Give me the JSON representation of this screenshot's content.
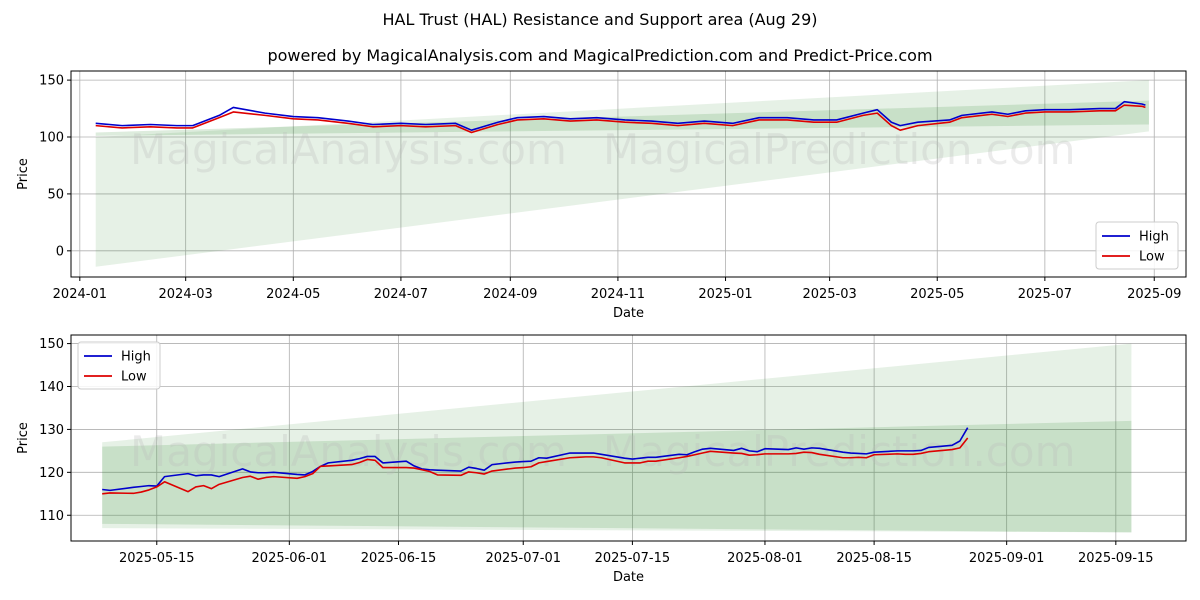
{
  "title": "HAL Trust (HAL) Resistance and Support area (Aug 29)",
  "subtitle": "powered by MagicalAnalysis.com and MagicalPrediction.com and Predict-Price.com",
  "watermarks": [
    "MagicalAnalysis.com",
    "MagicalPrediction.com"
  ],
  "colors": {
    "high": "#0000cc",
    "low": "#dd0000",
    "band": "#2e8b2e"
  },
  "chart_data": [
    {
      "type": "line",
      "xlabel": "Date",
      "ylabel": "Price",
      "ylim": [
        -23,
        158
      ],
      "xlim": [
        "2023-12-27",
        "2025-09-19"
      ],
      "grid": true,
      "legend_position": "bottom-right",
      "x_ticks": [
        "2024-01",
        "2024-03",
        "2024-05",
        "2024-07",
        "2024-09",
        "2024-11",
        "2025-01",
        "2025-03",
        "2025-05",
        "2025-07",
        "2025-09"
      ],
      "x_tick_dates": [
        "2024-01-01",
        "2024-03-01",
        "2024-05-01",
        "2024-07-01",
        "2024-09-01",
        "2024-11-01",
        "2025-01-01",
        "2025-03-01",
        "2025-05-01",
        "2025-07-01",
        "2025-09-01"
      ],
      "y_ticks": [
        0,
        50,
        100,
        150
      ],
      "bands": [
        {
          "x": [
            "2024-01-10",
            "2025-08-29"
          ],
          "upper": [
            100,
            150
          ],
          "lower": [
            -14,
            105
          ]
        },
        {
          "x": [
            "2024-01-10",
            "2025-08-29"
          ],
          "upper": [
            104,
            132
          ],
          "lower": [
            101,
            111
          ]
        }
      ],
      "series": [
        {
          "name": "High",
          "x": [
            "2024-01-10",
            "2024-01-25",
            "2024-02-10",
            "2024-02-25",
            "2024-03-05",
            "2024-03-20",
            "2024-03-28",
            "2024-04-15",
            "2024-05-01",
            "2024-05-15",
            "2024-06-01",
            "2024-06-15",
            "2024-07-01",
            "2024-07-15",
            "2024-08-01",
            "2024-08-10",
            "2024-08-25",
            "2024-09-05",
            "2024-09-20",
            "2024-10-05",
            "2024-10-20",
            "2024-11-05",
            "2024-11-20",
            "2024-12-05",
            "2024-12-20",
            "2025-01-05",
            "2025-01-20",
            "2025-02-05",
            "2025-02-20",
            "2025-03-05",
            "2025-03-20",
            "2025-03-28",
            "2025-04-05",
            "2025-04-10",
            "2025-04-20",
            "2025-05-08",
            "2025-05-15",
            "2025-06-01",
            "2025-06-10",
            "2025-06-20",
            "2025-07-01",
            "2025-07-15",
            "2025-08-01",
            "2025-08-10",
            "2025-08-15",
            "2025-08-25",
            "2025-08-27"
          ],
          "values": [
            112,
            110,
            111,
            110,
            110,
            119,
            126,
            121,
            118,
            117,
            114,
            111,
            112,
            111,
            112,
            106,
            113,
            117,
            118,
            116,
            117,
            115,
            114,
            112,
            114,
            112,
            117,
            117,
            115,
            115,
            121,
            124,
            113,
            110,
            113,
            115,
            119,
            122,
            120,
            123,
            124,
            124,
            125,
            125,
            131,
            129,
            128
          ]
        },
        {
          "name": "Low",
          "x": [
            "2024-01-10",
            "2024-01-25",
            "2024-02-10",
            "2024-02-25",
            "2024-03-05",
            "2024-03-20",
            "2024-03-28",
            "2024-04-15",
            "2024-05-01",
            "2024-05-15",
            "2024-06-01",
            "2024-06-15",
            "2024-07-01",
            "2024-07-15",
            "2024-08-01",
            "2024-08-10",
            "2024-08-25",
            "2024-09-05",
            "2024-09-20",
            "2024-10-05",
            "2024-10-20",
            "2024-11-05",
            "2024-11-20",
            "2024-12-05",
            "2024-12-20",
            "2025-01-05",
            "2025-01-20",
            "2025-02-05",
            "2025-02-20",
            "2025-03-05",
            "2025-03-20",
            "2025-03-28",
            "2025-04-05",
            "2025-04-10",
            "2025-04-20",
            "2025-05-08",
            "2025-05-15",
            "2025-06-01",
            "2025-06-10",
            "2025-06-20",
            "2025-07-01",
            "2025-07-15",
            "2025-08-01",
            "2025-08-10",
            "2025-08-15",
            "2025-08-25",
            "2025-08-27"
          ],
          "values": [
            110,
            108,
            109,
            108,
            108,
            117,
            122,
            119,
            116,
            115,
            112,
            109,
            110,
            109,
            110,
            104,
            111,
            115,
            116,
            114,
            115,
            113,
            112,
            110,
            112,
            110,
            115,
            115,
            113,
            113,
            119,
            121,
            110,
            106,
            110,
            113,
            117,
            120,
            118,
            121,
            122,
            122,
            123,
            123,
            128,
            127,
            126
          ]
        }
      ]
    },
    {
      "type": "line",
      "xlabel": "Date",
      "ylabel": "Price",
      "ylim": [
        104,
        152
      ],
      "xlim": [
        "2025-05-04",
        "2025-09-24"
      ],
      "grid": true,
      "legend_position": "top-left",
      "x_ticks": [
        "2025-05-15",
        "2025-06-01",
        "2025-06-15",
        "2025-07-01",
        "2025-07-15",
        "2025-08-01",
        "2025-08-15",
        "2025-09-01",
        "2025-09-15"
      ],
      "y_ticks": [
        110,
        120,
        130,
        140,
        150
      ],
      "bands": [
        {
          "x": [
            "2025-05-08",
            "2025-09-17"
          ],
          "upper": [
            127,
            150
          ],
          "lower": [
            107,
            106
          ]
        },
        {
          "x": [
            "2025-05-08",
            "2025-09-17"
          ],
          "upper": [
            126,
            132
          ],
          "lower": [
            108,
            106
          ]
        }
      ],
      "series": [
        {
          "name": "High",
          "x": [
            "2025-05-08",
            "2025-05-09",
            "2025-05-12",
            "2025-05-13",
            "2025-05-14",
            "2025-05-15",
            "2025-05-16",
            "2025-05-19",
            "2025-05-20",
            "2025-05-21",
            "2025-05-22",
            "2025-05-23",
            "2025-05-26",
            "2025-05-27",
            "2025-05-28",
            "2025-05-29",
            "2025-05-30",
            "2025-06-02",
            "2025-06-03",
            "2025-06-04",
            "2025-06-05",
            "2025-06-06",
            "2025-06-09",
            "2025-06-10",
            "2025-06-11",
            "2025-06-12",
            "2025-06-13",
            "2025-06-16",
            "2025-06-17",
            "2025-06-18",
            "2025-06-19",
            "2025-06-20",
            "2025-06-23",
            "2025-06-24",
            "2025-06-25",
            "2025-06-26",
            "2025-06-27",
            "2025-06-30",
            "2025-07-01",
            "2025-07-02",
            "2025-07-03",
            "2025-07-04",
            "2025-07-07",
            "2025-07-08",
            "2025-07-09",
            "2025-07-10",
            "2025-07-11",
            "2025-07-14",
            "2025-07-15",
            "2025-07-16",
            "2025-07-17",
            "2025-07-18",
            "2025-07-21",
            "2025-07-22",
            "2025-07-23",
            "2025-07-24",
            "2025-07-25",
            "2025-07-28",
            "2025-07-29",
            "2025-07-30",
            "2025-07-31",
            "2025-08-01",
            "2025-08-04",
            "2025-08-05",
            "2025-08-06",
            "2025-08-07",
            "2025-08-08",
            "2025-08-11",
            "2025-08-12",
            "2025-08-13",
            "2025-08-14",
            "2025-08-15",
            "2025-08-18",
            "2025-08-19",
            "2025-08-20",
            "2025-08-21",
            "2025-08-22",
            "2025-08-25",
            "2025-08-26",
            "2025-08-27"
          ],
          "values": [
            116,
            115.8,
            116.5,
            116.7,
            116.9,
            116.8,
            119,
            119.7,
            119.2,
            119.4,
            119.4,
            119,
            120.8,
            120.1,
            119.9,
            119.9,
            120,
            119.5,
            119.4,
            120.2,
            121.4,
            122.2,
            122.8,
            123.2,
            123.7,
            123.7,
            122.2,
            122.6,
            121.5,
            120.8,
            120.6,
            120.5,
            120.3,
            121.2,
            120.9,
            120.5,
            121.8,
            122.4,
            122.5,
            122.6,
            123.4,
            123.3,
            124.5,
            124.5,
            124.5,
            124.5,
            124.2,
            123.3,
            123.1,
            123.3,
            123.5,
            123.5,
            124.2,
            124.1,
            124.8,
            125.4,
            125.6,
            125.1,
            125.6,
            125,
            124.8,
            125.5,
            125.3,
            125.7,
            125.4,
            125.7,
            125.6,
            124.7,
            124.5,
            124.4,
            124.3,
            124.7,
            125,
            125,
            125,
            125.1,
            125.8,
            126.3,
            127.3,
            130.4
          ]
        },
        {
          "name": "Low",
          "x": [
            "2025-05-08",
            "2025-05-09",
            "2025-05-12",
            "2025-05-13",
            "2025-05-14",
            "2025-05-15",
            "2025-05-16",
            "2025-05-19",
            "2025-05-20",
            "2025-05-21",
            "2025-05-22",
            "2025-05-23",
            "2025-05-26",
            "2025-05-27",
            "2025-05-28",
            "2025-05-29",
            "2025-05-30",
            "2025-06-02",
            "2025-06-03",
            "2025-06-04",
            "2025-06-05",
            "2025-06-06",
            "2025-06-09",
            "2025-06-10",
            "2025-06-11",
            "2025-06-12",
            "2025-06-13",
            "2025-06-16",
            "2025-06-17",
            "2025-06-18",
            "2025-06-19",
            "2025-06-20",
            "2025-06-23",
            "2025-06-24",
            "2025-06-25",
            "2025-06-26",
            "2025-06-27",
            "2025-06-30",
            "2025-07-01",
            "2025-07-02",
            "2025-07-03",
            "2025-07-04",
            "2025-07-07",
            "2025-07-08",
            "2025-07-09",
            "2025-07-10",
            "2025-07-11",
            "2025-07-14",
            "2025-07-15",
            "2025-07-16",
            "2025-07-17",
            "2025-07-18",
            "2025-07-21",
            "2025-07-22",
            "2025-07-23",
            "2025-07-24",
            "2025-07-25",
            "2025-07-28",
            "2025-07-29",
            "2025-07-30",
            "2025-07-31",
            "2025-08-01",
            "2025-08-04",
            "2025-08-05",
            "2025-08-06",
            "2025-08-07",
            "2025-08-08",
            "2025-08-11",
            "2025-08-12",
            "2025-08-13",
            "2025-08-14",
            "2025-08-15",
            "2025-08-18",
            "2025-08-19",
            "2025-08-20",
            "2025-08-21",
            "2025-08-22",
            "2025-08-25",
            "2025-08-26",
            "2025-08-27"
          ],
          "values": [
            115,
            115.2,
            115.1,
            115.4,
            115.9,
            116.6,
            117.8,
            115.5,
            116.6,
            116.9,
            116.2,
            117.2,
            118.8,
            119.1,
            118.4,
            118.8,
            119,
            118.6,
            119,
            119.7,
            121.4,
            121.5,
            121.8,
            122.3,
            123,
            122.8,
            121.1,
            121.1,
            121,
            120.6,
            120.2,
            119.4,
            119.3,
            120.1,
            119.9,
            119.6,
            120.3,
            121,
            121.1,
            121.3,
            122.2,
            122.5,
            123.4,
            123.5,
            123.6,
            123.6,
            123.4,
            122.2,
            122.2,
            122.2,
            122.6,
            122.6,
            123.4,
            123.7,
            124.1,
            124.5,
            124.9,
            124.5,
            124.4,
            124,
            124.1,
            124.3,
            124.3,
            124.4,
            124.7,
            124.6,
            124.2,
            123.4,
            123.4,
            123.5,
            123.4,
            124.1,
            124.3,
            124.2,
            124.2,
            124.4,
            124.8,
            125.3,
            125.7,
            128
          ]
        }
      ]
    }
  ]
}
